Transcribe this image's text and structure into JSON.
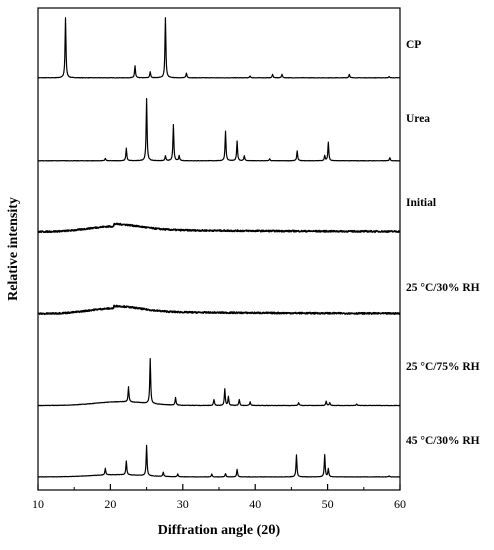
{
  "chart_data": {
    "type": "line",
    "title": "",
    "xlabel": "Diffration angle (2θ)",
    "ylabel": "Relative intensity",
    "xlim": [
      10,
      60
    ],
    "xticks": [
      10,
      20,
      30,
      40,
      50,
      60
    ],
    "grid": false,
    "legend": "labels placed right of each trace",
    "series": [
      {
        "name": "CP",
        "baseline": 0.02,
        "peaks": [
          {
            "x": 13.8,
            "h": 1.0
          },
          {
            "x": 23.4,
            "h": 0.2
          },
          {
            "x": 25.5,
            "h": 0.1
          },
          {
            "x": 27.6,
            "h": 1.0
          },
          {
            "x": 30.5,
            "h": 0.08
          },
          {
            "x": 39.3,
            "h": 0.03
          },
          {
            "x": 42.4,
            "h": 0.06
          },
          {
            "x": 43.7,
            "h": 0.06
          },
          {
            "x": 53.0,
            "h": 0.06
          },
          {
            "x": 58.5,
            "h": 0.02
          }
        ]
      },
      {
        "name": "Urea",
        "baseline": 0.02,
        "peaks": [
          {
            "x": 19.3,
            "h": 0.04
          },
          {
            "x": 22.2,
            "h": 0.2
          },
          {
            "x": 25.0,
            "h": 1.0
          },
          {
            "x": 27.6,
            "h": 0.08
          },
          {
            "x": 28.7,
            "h": 0.58
          },
          {
            "x": 29.5,
            "h": 0.08
          },
          {
            "x": 35.9,
            "h": 0.48
          },
          {
            "x": 37.5,
            "h": 0.32
          },
          {
            "x": 38.5,
            "h": 0.08
          },
          {
            "x": 42.0,
            "h": 0.03
          },
          {
            "x": 45.8,
            "h": 0.16
          },
          {
            "x": 49.6,
            "h": 0.08
          },
          {
            "x": 50.1,
            "h": 0.3
          },
          {
            "x": 58.6,
            "h": 0.05
          }
        ]
      },
      {
        "name": "Initial",
        "amorphous": true,
        "baseline": 0.02,
        "halo": {
          "center": 20.5,
          "height": 0.09,
          "width": 5
        },
        "noise": 0.012,
        "peaks": []
      },
      {
        "name": "25 °C/30% RH",
        "amorphous": true,
        "baseline": 0.02,
        "halo": {
          "center": 20.5,
          "height": 0.09,
          "width": 5
        },
        "noise": 0.012,
        "peaks": []
      },
      {
        "name": "25 °C/75% RH",
        "baseline": 0.02,
        "halo": {
          "center": 21.5,
          "height": 0.05,
          "width": 5
        },
        "peaks": [
          {
            "x": 22.5,
            "h": 0.2
          },
          {
            "x": 25.5,
            "h": 0.6
          },
          {
            "x": 29.0,
            "h": 0.1
          },
          {
            "x": 34.3,
            "h": 0.08
          },
          {
            "x": 35.8,
            "h": 0.22
          },
          {
            "x": 36.3,
            "h": 0.12
          },
          {
            "x": 37.8,
            "h": 0.08
          },
          {
            "x": 39.3,
            "h": 0.05
          },
          {
            "x": 46.0,
            "h": 0.04
          },
          {
            "x": 49.8,
            "h": 0.06
          },
          {
            "x": 50.3,
            "h": 0.04
          },
          {
            "x": 54.0,
            "h": 0.02
          }
        ]
      },
      {
        "name": "45 °C/30% RH",
        "baseline": 0.02,
        "halo": {
          "center": 21.0,
          "height": 0.04,
          "width": 5
        },
        "peaks": [
          {
            "x": 19.3,
            "h": 0.12
          },
          {
            "x": 22.2,
            "h": 0.25
          },
          {
            "x": 25.0,
            "h": 0.55
          },
          {
            "x": 27.3,
            "h": 0.08
          },
          {
            "x": 29.3,
            "h": 0.05
          },
          {
            "x": 34.0,
            "h": 0.05
          },
          {
            "x": 35.9,
            "h": 0.06
          },
          {
            "x": 37.5,
            "h": 0.14
          },
          {
            "x": 45.7,
            "h": 0.4
          },
          {
            "x": 49.6,
            "h": 0.4
          },
          {
            "x": 50.1,
            "h": 0.15
          },
          {
            "x": 58.5,
            "h": 0.02
          }
        ]
      }
    ]
  },
  "colors": {
    "line": "#000000",
    "axis": "#000000",
    "background": "#ffffff"
  }
}
